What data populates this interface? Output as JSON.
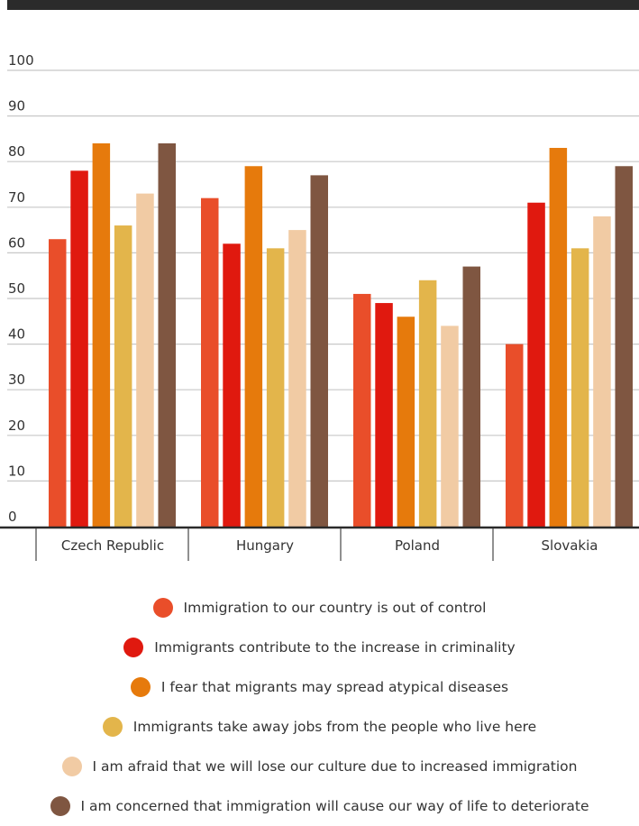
{
  "chart_data": {
    "type": "bar",
    "categories": [
      "Czech Republic",
      "Hungary",
      "Poland",
      "Slovakia"
    ],
    "ylim": [
      0,
      100
    ],
    "yticks": [
      0,
      10,
      20,
      30,
      40,
      50,
      60,
      70,
      80,
      90,
      100
    ],
    "grid": true,
    "legend_position": "bottom",
    "series": [
      {
        "name": "Immigration to our country is out of control",
        "color": "#e94e2a",
        "values": [
          63,
          72,
          51,
          40
        ]
      },
      {
        "name": "Immigrants contribute to the increase in criminality",
        "color": "#e0190f",
        "values": [
          78,
          62,
          49,
          71
        ]
      },
      {
        "name": "I fear that migrants may spread atypical diseases",
        "color": "#e67a0c",
        "values": [
          84,
          79,
          46,
          83
        ]
      },
      {
        "name": "Immigrants take away jobs from the people who live here",
        "color": "#e3b54b",
        "values": [
          66,
          61,
          54,
          61
        ]
      },
      {
        "name": "I am afraid that we will lose our culture due to increased immigration",
        "color": "#f1cba4",
        "values": [
          73,
          65,
          44,
          68
        ]
      },
      {
        "name": "I am concerned that immigration will cause our way of life to deteriorate",
        "color": "#7f5641",
        "values": [
          84,
          77,
          57,
          79
        ]
      }
    ]
  }
}
